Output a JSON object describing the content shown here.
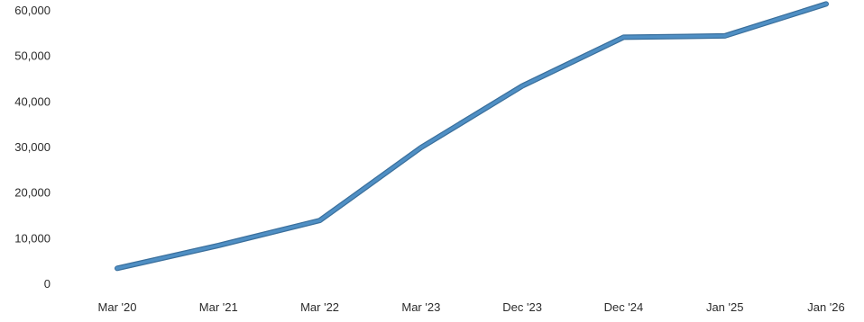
{
  "chart_data": {
    "type": "line",
    "categories": [
      "Mar '20",
      "Mar '21",
      "Mar '22",
      "Mar '23",
      "Dec '23",
      "Dec '24",
      "Jan '25",
      "Jan '26"
    ],
    "series": [
      {
        "values": [
          3500,
          8500,
          14000,
          30000,
          43500,
          54200,
          54500,
          61500
        ],
        "color": "#4f8fc4"
      }
    ],
    "y_ticks": [
      "0",
      "10,000",
      "20,000",
      "30,000",
      "40,000",
      "50,000",
      "60,000"
    ],
    "ylim": [
      0,
      60000
    ],
    "grid": false,
    "legend": "none"
  }
}
